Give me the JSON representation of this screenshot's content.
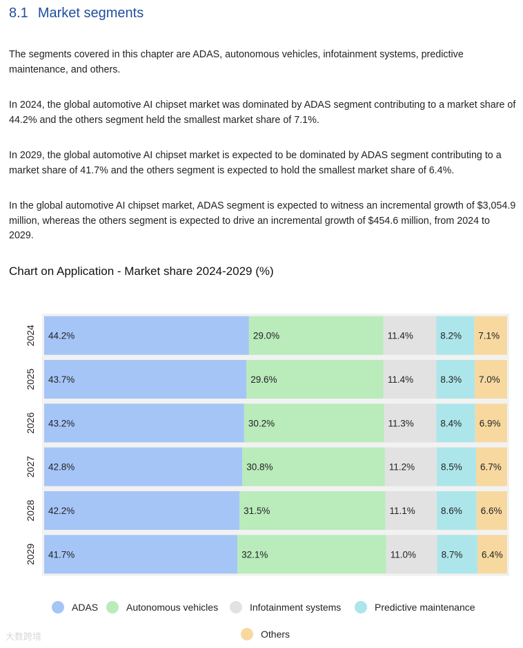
{
  "section": {
    "number": "8.1",
    "title": "Market segments"
  },
  "paragraphs": [
    "The segments covered in this chapter are ADAS, autonomous vehicles, infotainment systems, predictive maintenance, and others.",
    "In 2024, the global automotive AI chipset market was dominated by ADAS segment contributing to a market share of 44.2% and the others segment held the smallest market share of 7.1%.",
    "In 2029, the global automotive AI chipset market is expected to be dominated by ADAS segment contributing to a market share of 41.7% and the others segment is expected to hold the smallest market share of 6.4%.",
    "In the global automotive AI chipset market, ADAS segment is expected to witness an incremental growth of $3,054.9 million, whereas the others segment is expected to drive an incremental growth of $454.6 million, from 2024 to 2029."
  ],
  "watermark": "大数跨境",
  "chart_data": {
    "type": "bar",
    "orientation": "horizontal",
    "stacked": true,
    "normalized": true,
    "title": "Chart on Application - Market share 2024-2029 (%)",
    "categories": [
      "2024",
      "2025",
      "2026",
      "2027",
      "2028",
      "2029"
    ],
    "series": [
      {
        "name": "ADAS",
        "color": "#a6c5f7",
        "values": [
          44.2,
          43.7,
          43.2,
          42.8,
          42.2,
          41.7
        ],
        "labels": [
          "44.2%",
          "43.7%",
          "43.2%",
          "42.8%",
          "42.2%",
          "41.7%"
        ]
      },
      {
        "name": "Autonomous vehicles",
        "color": "#b9ebbb",
        "values": [
          29.0,
          29.6,
          30.2,
          30.8,
          31.5,
          32.1
        ],
        "labels": [
          "29.0%",
          "29.6%",
          "30.2%",
          "30.8%",
          "31.5%",
          "32.1%"
        ]
      },
      {
        "name": "Infotainment systems",
        "color": "#e2e2e2",
        "values": [
          11.4,
          11.4,
          11.3,
          11.2,
          11.1,
          11.0
        ],
        "labels": [
          "11.4%",
          "11.4%",
          "11.3%",
          "11.2%",
          "11.1%",
          "11.0%"
        ]
      },
      {
        "name": "Predictive maintenance",
        "color": "#ade6ea",
        "values": [
          8.2,
          8.3,
          8.4,
          8.5,
          8.6,
          8.7
        ],
        "labels": [
          "8.2%",
          "8.3%",
          "8.4%",
          "8.5%",
          "8.6%",
          "8.7%"
        ]
      },
      {
        "name": "Others",
        "color": "#f7d9a0",
        "values": [
          7.1,
          7.0,
          6.9,
          6.7,
          6.6,
          6.4
        ],
        "labels": [
          "7.1%",
          "7.0%",
          "6.9%",
          "6.7%",
          "6.6%",
          "6.4%"
        ]
      }
    ],
    "xlim": [
      0,
      100
    ],
    "grid": false,
    "legend_position": "bottom",
    "plot_background": "#f2f2f2"
  }
}
